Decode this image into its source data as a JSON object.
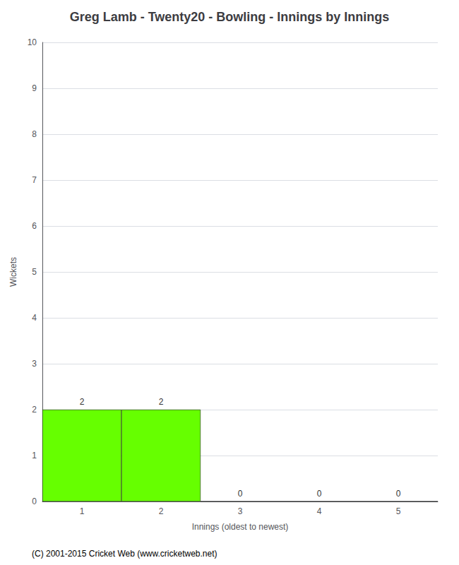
{
  "chart_data": {
    "type": "bar",
    "title": "Greg Lamb - Twenty20 - Bowling - Innings by Innings",
    "xlabel": "Innings (oldest to newest)",
    "ylabel": "Wickets",
    "categories": [
      1,
      2,
      3,
      4,
      5
    ],
    "values": [
      2,
      2,
      0,
      0,
      0
    ],
    "color": "#66ff00",
    "ylim": [
      0,
      10
    ],
    "yticks": [
      0,
      1,
      2,
      3,
      4,
      5,
      6,
      7,
      8,
      9,
      10
    ],
    "grid": true,
    "data_labels": true,
    "annotations": [
      "(C) 2001-2015 Cricket Web (www.cricketweb.net)"
    ]
  }
}
